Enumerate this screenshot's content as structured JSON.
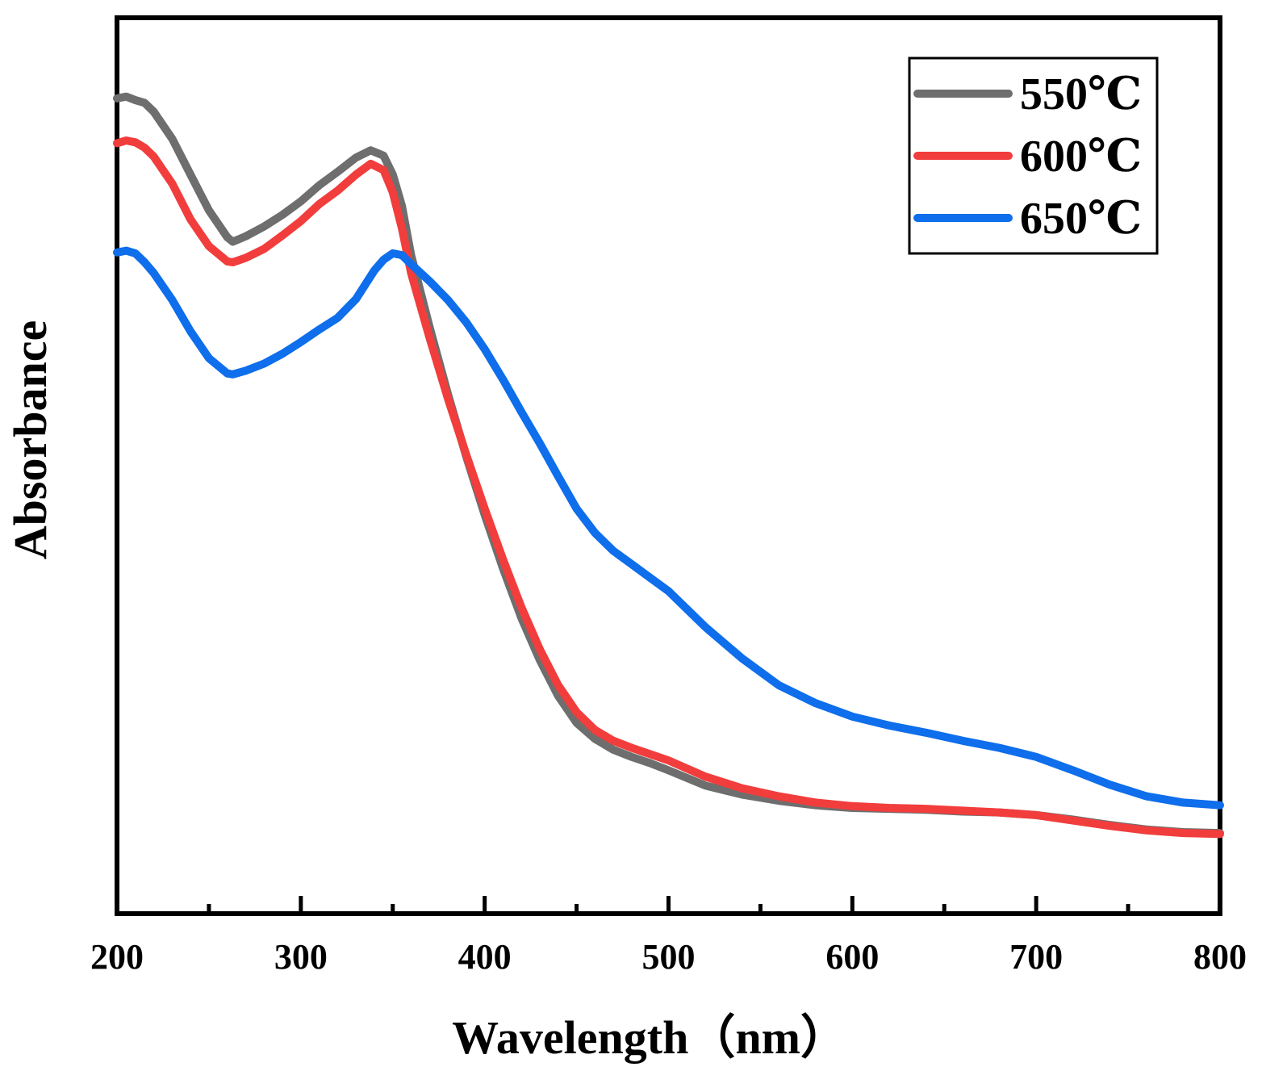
{
  "chart_data": {
    "type": "line",
    "title": "",
    "xlabel": "Wavelength（nm）",
    "ylabel": "Absorbance",
    "xlim": [
      200,
      800
    ],
    "ylim": [
      0,
      1
    ],
    "xticks": [
      200,
      300,
      400,
      500,
      600,
      700,
      800
    ],
    "xtick_labels": [
      "200",
      "300",
      "400",
      "500",
      "600",
      "700",
      "800"
    ],
    "x_minor_ticks": [
      250,
      350,
      450,
      550,
      650,
      750
    ],
    "yticks_shown": false,
    "grid": false,
    "legend": {
      "position": "top-right",
      "framed": true
    },
    "series": [
      {
        "name": "550℃",
        "color": "#6e6e6e",
        "x": [
          200,
          205,
          210,
          215,
          220,
          230,
          240,
          250,
          260,
          263,
          270,
          280,
          290,
          300,
          310,
          320,
          330,
          338,
          345,
          350,
          355,
          360,
          370,
          380,
          390,
          400,
          410,
          420,
          430,
          440,
          450,
          460,
          470,
          480,
          490,
          500,
          520,
          540,
          560,
          580,
          600,
          620,
          640,
          660,
          680,
          700,
          720,
          740,
          760,
          780,
          800
        ],
        "y": [
          0.91,
          0.912,
          0.908,
          0.905,
          0.895,
          0.865,
          0.825,
          0.785,
          0.755,
          0.75,
          0.756,
          0.767,
          0.78,
          0.795,
          0.813,
          0.828,
          0.844,
          0.852,
          0.846,
          0.825,
          0.79,
          0.735,
          0.655,
          0.58,
          0.51,
          0.445,
          0.385,
          0.33,
          0.283,
          0.243,
          0.213,
          0.195,
          0.183,
          0.175,
          0.168,
          0.16,
          0.143,
          0.133,
          0.126,
          0.121,
          0.118,
          0.117,
          0.116,
          0.114,
          0.113,
          0.11,
          0.105,
          0.099,
          0.094,
          0.091,
          0.09
        ]
      },
      {
        "name": "600℃",
        "color": "#f23d3d",
        "x": [
          200,
          205,
          210,
          215,
          220,
          230,
          240,
          250,
          260,
          263,
          270,
          280,
          290,
          300,
          310,
          320,
          330,
          338,
          345,
          350,
          355,
          360,
          370,
          380,
          390,
          400,
          410,
          420,
          430,
          440,
          450,
          460,
          470,
          480,
          490,
          500,
          520,
          540,
          560,
          580,
          600,
          620,
          640,
          660,
          680,
          700,
          720,
          740,
          760,
          780,
          800
        ],
        "y": [
          0.86,
          0.863,
          0.861,
          0.855,
          0.845,
          0.815,
          0.775,
          0.745,
          0.728,
          0.727,
          0.732,
          0.742,
          0.757,
          0.773,
          0.792,
          0.807,
          0.825,
          0.837,
          0.83,
          0.805,
          0.765,
          0.715,
          0.643,
          0.575,
          0.512,
          0.452,
          0.395,
          0.342,
          0.295,
          0.255,
          0.225,
          0.205,
          0.193,
          0.185,
          0.178,
          0.171,
          0.153,
          0.14,
          0.131,
          0.124,
          0.12,
          0.118,
          0.117,
          0.115,
          0.113,
          0.11,
          0.104,
          0.098,
          0.093,
          0.09,
          0.089
        ]
      },
      {
        "name": "650℃",
        "color": "#0e6eeb",
        "x": [
          200,
          205,
          210,
          215,
          220,
          230,
          240,
          250,
          260,
          263,
          270,
          280,
          290,
          300,
          310,
          320,
          330,
          340,
          345,
          350,
          355,
          360,
          370,
          380,
          390,
          400,
          410,
          420,
          430,
          440,
          450,
          460,
          470,
          480,
          490,
          500,
          520,
          540,
          560,
          580,
          600,
          620,
          640,
          660,
          680,
          700,
          720,
          740,
          760,
          780,
          800
        ],
        "y": [
          0.738,
          0.74,
          0.737,
          0.727,
          0.715,
          0.685,
          0.65,
          0.62,
          0.603,
          0.602,
          0.606,
          0.614,
          0.625,
          0.638,
          0.652,
          0.665,
          0.686,
          0.718,
          0.73,
          0.737,
          0.735,
          0.725,
          0.706,
          0.685,
          0.66,
          0.63,
          0.596,
          0.56,
          0.525,
          0.488,
          0.452,
          0.425,
          0.405,
          0.39,
          0.375,
          0.36,
          0.32,
          0.285,
          0.255,
          0.235,
          0.22,
          0.21,
          0.202,
          0.193,
          0.185,
          0.175,
          0.16,
          0.144,
          0.131,
          0.124,
          0.121
        ]
      }
    ]
  }
}
